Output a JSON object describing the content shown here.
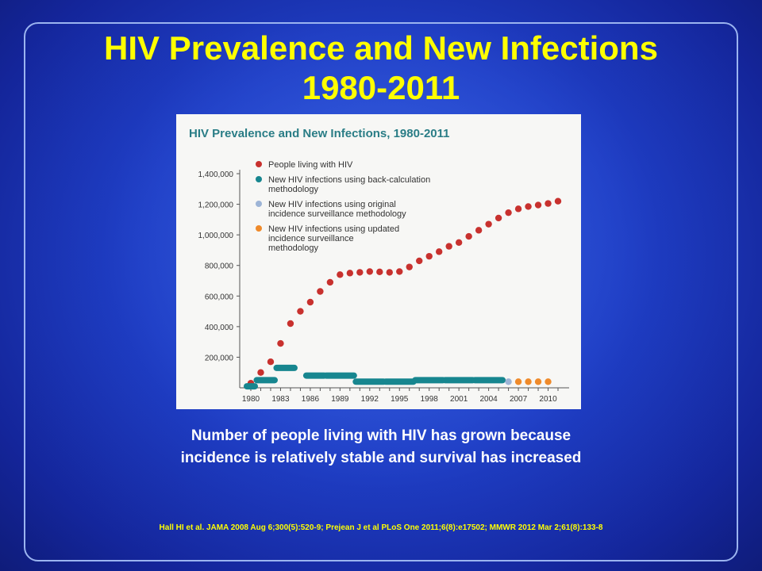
{
  "slide": {
    "title_line1": "HIV Prevalence and New Infections",
    "title_line2": "1980-2011",
    "caption_line1": "Number of people living with HIV has grown because",
    "caption_line2": "incidence is relatively stable and survival has increased",
    "footnote": "Hall HI et al. JAMA 2008 Aug 6;300(5):520-9; Prejean J et al PLoS One 2011;6(8):e17502; MMWR 2012 Mar 2;61(8):133-8"
  },
  "chart_data": {
    "type": "scatter",
    "title": "HIV Prevalence and New Infections, 1980-2011",
    "xlabel": "",
    "ylabel": "",
    "xlim": [
      1980,
      2011
    ],
    "ylim": [
      0,
      1400000
    ],
    "x_ticks": [
      "1980",
      "1983",
      "1986",
      "1989",
      "1992",
      "1995",
      "1998",
      "2001",
      "2004",
      "2007",
      "2010"
    ],
    "y_ticks": [
      "200,000",
      "400,000",
      "600,000",
      "800,000",
      "1,000,000",
      "1,200,000",
      "1,400,000"
    ],
    "grid": false,
    "legend_position": "top-left",
    "series": [
      {
        "name": "People living with HIV",
        "color": "#c8312e",
        "mark": "dot",
        "x": [
          1980,
          1981,
          1982,
          1983,
          1984,
          1985,
          1986,
          1987,
          1988,
          1989,
          1990,
          1991,
          1992,
          1993,
          1994,
          1995,
          1996,
          1997,
          1998,
          1999,
          2000,
          2001,
          2002,
          2003,
          2004,
          2005,
          2006,
          2007,
          2008,
          2009,
          2010,
          2011
        ],
        "y": [
          30000,
          100000,
          170000,
          290000,
          420000,
          500000,
          560000,
          630000,
          690000,
          740000,
          750000,
          755000,
          760000,
          758000,
          755000,
          760000,
          790000,
          830000,
          860000,
          890000,
          925000,
          950000,
          990000,
          1030000,
          1070000,
          1110000,
          1145000,
          1170000,
          1185000,
          1195000,
          1205000,
          1220000
        ]
      },
      {
        "name": "New HIV infections using back-calculation methodology",
        "color": "#17868f",
        "mark": "segment",
        "x": [
          [
            1980,
            1980
          ],
          [
            1981,
            1982
          ],
          [
            1983,
            1984
          ],
          [
            1986,
            1987
          ],
          [
            1988,
            1990
          ],
          [
            1991,
            1993
          ],
          [
            1994,
            1996
          ],
          [
            1997,
            1999
          ],
          [
            2000,
            2002
          ],
          [
            2003,
            2005
          ]
        ],
        "y": [
          10000,
          50000,
          130000,
          80000,
          80000,
          40000,
          40000,
          50000,
          50000,
          50000
        ]
      },
      {
        "name": "New HIV infections using original incidence surveillance methodology",
        "color": "#9db4d6",
        "mark": "dot",
        "x": [
          2006
        ],
        "y": [
          40000
        ]
      },
      {
        "name": "New HIV infections using updated incidence surveillance methodology",
        "color": "#ef8a2a",
        "mark": "dot",
        "x": [
          2007,
          2008,
          2009,
          2010
        ],
        "y": [
          40000,
          40000,
          40000,
          40000
        ]
      }
    ]
  }
}
